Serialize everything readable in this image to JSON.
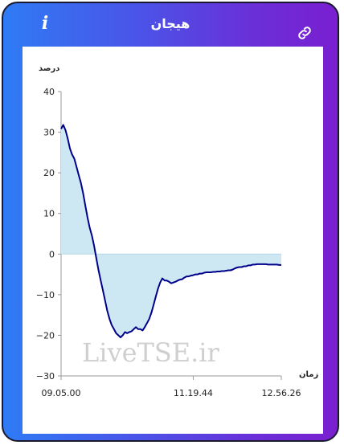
{
  "header": {
    "title": "هیجان",
    "info_label": "i",
    "info_icon": "info-icon",
    "link_icon": "link-icon"
  },
  "colors": {
    "line": "#00008b",
    "fill": "#cde8f3",
    "gradient_start": "#2f7bf5",
    "gradient_end": "#7a1fd0"
  },
  "watermark": "LiveTSE.ir",
  "chart_data": {
    "type": "area",
    "ylabel": "درصد",
    "xlabel": "زمان",
    "ylim": [
      -30,
      40
    ],
    "yticks": [
      40,
      30,
      20,
      10,
      0,
      -10,
      -20,
      -30
    ],
    "ytick_labels": [
      "40",
      "30",
      "20",
      "10",
      "0",
      "−10",
      "−20",
      "−30"
    ],
    "xtick_labels": [
      "09.05.00",
      "11.19.44",
      "12.56.26"
    ],
    "xtick_positions": [
      0,
      0.6,
      1.0
    ],
    "grid": false,
    "series": [
      {
        "x": [
          0,
          0.01,
          0.02,
          0.03,
          0.04,
          0.05,
          0.06,
          0.07,
          0.08,
          0.09,
          0.1,
          0.11,
          0.12,
          0.13,
          0.14,
          0.15,
          0.16,
          0.17,
          0.18,
          0.19,
          0.2,
          0.21,
          0.22,
          0.23,
          0.24,
          0.25,
          0.26,
          0.27,
          0.28,
          0.29,
          0.3,
          0.31,
          0.32,
          0.33,
          0.34,
          0.35,
          0.36,
          0.37,
          0.38,
          0.39,
          0.4,
          0.41,
          0.42,
          0.43,
          0.44,
          0.45,
          0.46,
          0.47,
          0.48,
          0.49,
          0.5,
          0.51,
          0.52,
          0.53,
          0.54,
          0.55,
          0.56,
          0.57,
          0.58,
          0.59,
          0.6,
          0.61,
          0.62,
          0.63,
          0.64,
          0.65,
          0.66,
          0.67,
          0.68,
          0.69,
          0.7,
          0.71,
          0.72,
          0.73,
          0.74,
          0.75,
          0.76,
          0.77,
          0.78,
          0.79,
          0.8,
          0.81,
          0.82,
          0.83,
          0.84,
          0.85,
          0.86,
          0.87,
          0.88,
          0.89,
          0.9,
          0.91,
          0.92,
          0.93,
          0.94,
          0.95,
          0.96,
          0.97,
          0.98,
          0.99,
          1.0
        ],
        "values": [
          30.8,
          31.8,
          30.5,
          28.5,
          26.0,
          24.5,
          23.5,
          21.5,
          19.5,
          17.5,
          15.0,
          12.0,
          9.0,
          6.5,
          4.5,
          2.0,
          -1.0,
          -4.0,
          -6.5,
          -9.0,
          -11.5,
          -14.0,
          -16.0,
          -17.5,
          -18.5,
          -19.5,
          -20.0,
          -20.5,
          -20.0,
          -19.2,
          -19.5,
          -19.2,
          -19.0,
          -18.5,
          -18.0,
          -18.5,
          -18.5,
          -18.8,
          -18.0,
          -17.0,
          -16.0,
          -14.5,
          -12.5,
          -10.5,
          -8.5,
          -7.0,
          -6.0,
          -6.5,
          -6.5,
          -6.8,
          -7.2,
          -7.0,
          -6.8,
          -6.5,
          -6.3,
          -6.2,
          -5.8,
          -5.5,
          -5.5,
          -5.3,
          -5.2,
          -5.0,
          -5.0,
          -4.8,
          -4.8,
          -4.6,
          -4.5,
          -4.5,
          -4.5,
          -4.4,
          -4.4,
          -4.3,
          -4.3,
          -4.2,
          -4.2,
          -4.1,
          -4.0,
          -4.0,
          -3.8,
          -3.5,
          -3.3,
          -3.2,
          -3.2,
          -3.0,
          -3.0,
          -2.8,
          -2.8,
          -2.6,
          -2.6,
          -2.5,
          -2.5,
          -2.5,
          -2.5,
          -2.5,
          -2.6,
          -2.6,
          -2.6,
          -2.6,
          -2.6,
          -2.7,
          -2.7
        ]
      }
    ]
  }
}
